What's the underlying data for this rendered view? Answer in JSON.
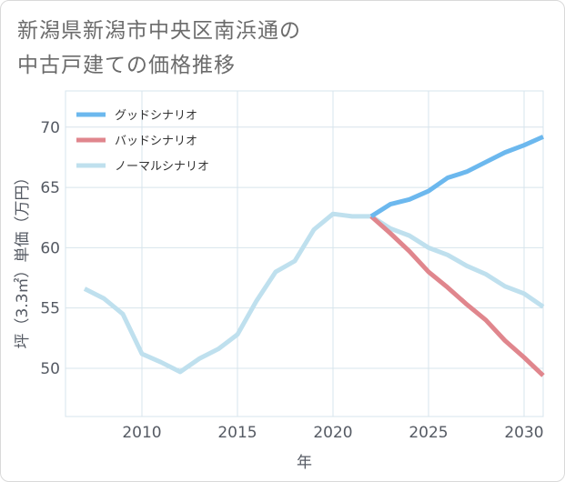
{
  "title": {
    "line1": "新潟県新潟市中央区南浜通の",
    "line2": "中古戸建ての価格推移"
  },
  "colors": {
    "good": "#6cb8ee",
    "bad": "#e0868d",
    "normal": "#bfe0ee",
    "grid": "#d7e4ec",
    "text": "#555a63"
  },
  "chart_data": {
    "type": "line",
    "xlabel": "年",
    "ylabel": "坪（3.3㎡）単価（万円）",
    "xlim": [
      2006,
      2031
    ],
    "ylim": [
      46,
      73
    ],
    "xticks": [
      2010,
      2015,
      2020,
      2025,
      2030
    ],
    "yticks": [
      50,
      55,
      60,
      65,
      70
    ],
    "legend_position": "top-left",
    "grid": true,
    "series": [
      {
        "name": "グッドシナリオ",
        "key": "good",
        "x": [
          2022,
          2023,
          2024,
          2025,
          2026,
          2027,
          2028,
          2029,
          2030,
          2031
        ],
        "y": [
          62.6,
          63.6,
          64.0,
          64.7,
          65.8,
          66.3,
          67.1,
          67.9,
          68.5,
          69.2
        ]
      },
      {
        "name": "バッドシナリオ",
        "key": "bad",
        "x": [
          2022,
          2023,
          2024,
          2025,
          2026,
          2027,
          2028,
          2029,
          2030,
          2031
        ],
        "y": [
          62.6,
          61.2,
          59.7,
          58.0,
          56.7,
          55.3,
          54.0,
          52.3,
          50.9,
          49.4
        ]
      },
      {
        "name": "ノーマルシナリオ",
        "key": "normal",
        "x": [
          2007,
          2008,
          2009,
          2010,
          2011,
          2012,
          2013,
          2014,
          2015,
          2016,
          2017,
          2018,
          2019,
          2020,
          2021,
          2022,
          2023,
          2024,
          2025,
          2026,
          2027,
          2028,
          2029,
          2030,
          2031
        ],
        "y": [
          56.6,
          55.8,
          54.5,
          51.2,
          50.5,
          49.7,
          50.8,
          51.6,
          52.8,
          55.6,
          58.0,
          58.9,
          61.5,
          62.8,
          62.6,
          62.6,
          61.6,
          61.0,
          60.0,
          59.4,
          58.5,
          57.8,
          56.8,
          56.2,
          55.1
        ]
      }
    ]
  }
}
